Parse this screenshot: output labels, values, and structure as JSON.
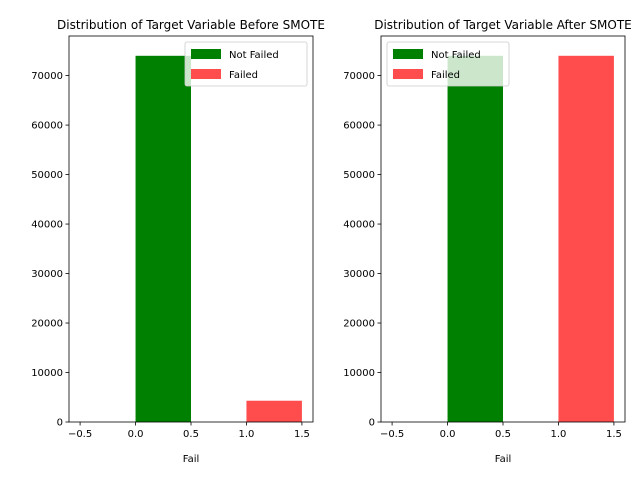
{
  "chart_data": [
    {
      "type": "bar",
      "title": "Distribution of Target Variable Before SMOTE",
      "xlabel": "Fail",
      "ylabel": "",
      "xlim": [
        -0.6,
        1.6
      ],
      "ylim": [
        0,
        78000
      ],
      "xticks": [
        -0.5,
        0.0,
        0.5,
        1.0,
        1.5
      ],
      "xtick_labels": [
        "−0.5",
        "0.0",
        "0.5",
        "1.0",
        "1.5"
      ],
      "yticks": [
        0,
        10000,
        20000,
        30000,
        40000,
        50000,
        60000,
        70000
      ],
      "ytick_labels": [
        "0",
        "10000",
        "20000",
        "30000",
        "40000",
        "50000",
        "60000",
        "70000"
      ],
      "legend_position": "top-right",
      "series": [
        {
          "name": "Not Failed",
          "color": "#008000",
          "opacity": 1.0,
          "x_start": 0.0,
          "x_end": 0.5,
          "value": 74000
        },
        {
          "name": "Failed",
          "color": "#ff0000",
          "opacity": 0.7,
          "x_start": 1.0,
          "x_end": 1.5,
          "value": 4300
        }
      ]
    },
    {
      "type": "bar",
      "title": "Distribution of Target Variable After SMOTE",
      "xlabel": "Fail",
      "ylabel": "",
      "xlim": [
        -0.6,
        1.6
      ],
      "ylim": [
        0,
        78000
      ],
      "xticks": [
        -0.5,
        0.0,
        0.5,
        1.0,
        1.5
      ],
      "xtick_labels": [
        "−0.5",
        "0.0",
        "0.5",
        "1.0",
        "1.5"
      ],
      "yticks": [
        0,
        10000,
        20000,
        30000,
        40000,
        50000,
        60000,
        70000
      ],
      "ytick_labels": [
        "0",
        "10000",
        "20000",
        "30000",
        "40000",
        "50000",
        "60000",
        "70000"
      ],
      "legend_position": "top-left",
      "series": [
        {
          "name": "Not Failed",
          "color": "#008000",
          "opacity": 1.0,
          "x_start": 0.0,
          "x_end": 0.5,
          "value": 74000
        },
        {
          "name": "Failed",
          "color": "#ff0000",
          "opacity": 0.7,
          "x_start": 1.0,
          "x_end": 1.5,
          "value": 74000
        }
      ]
    }
  ]
}
